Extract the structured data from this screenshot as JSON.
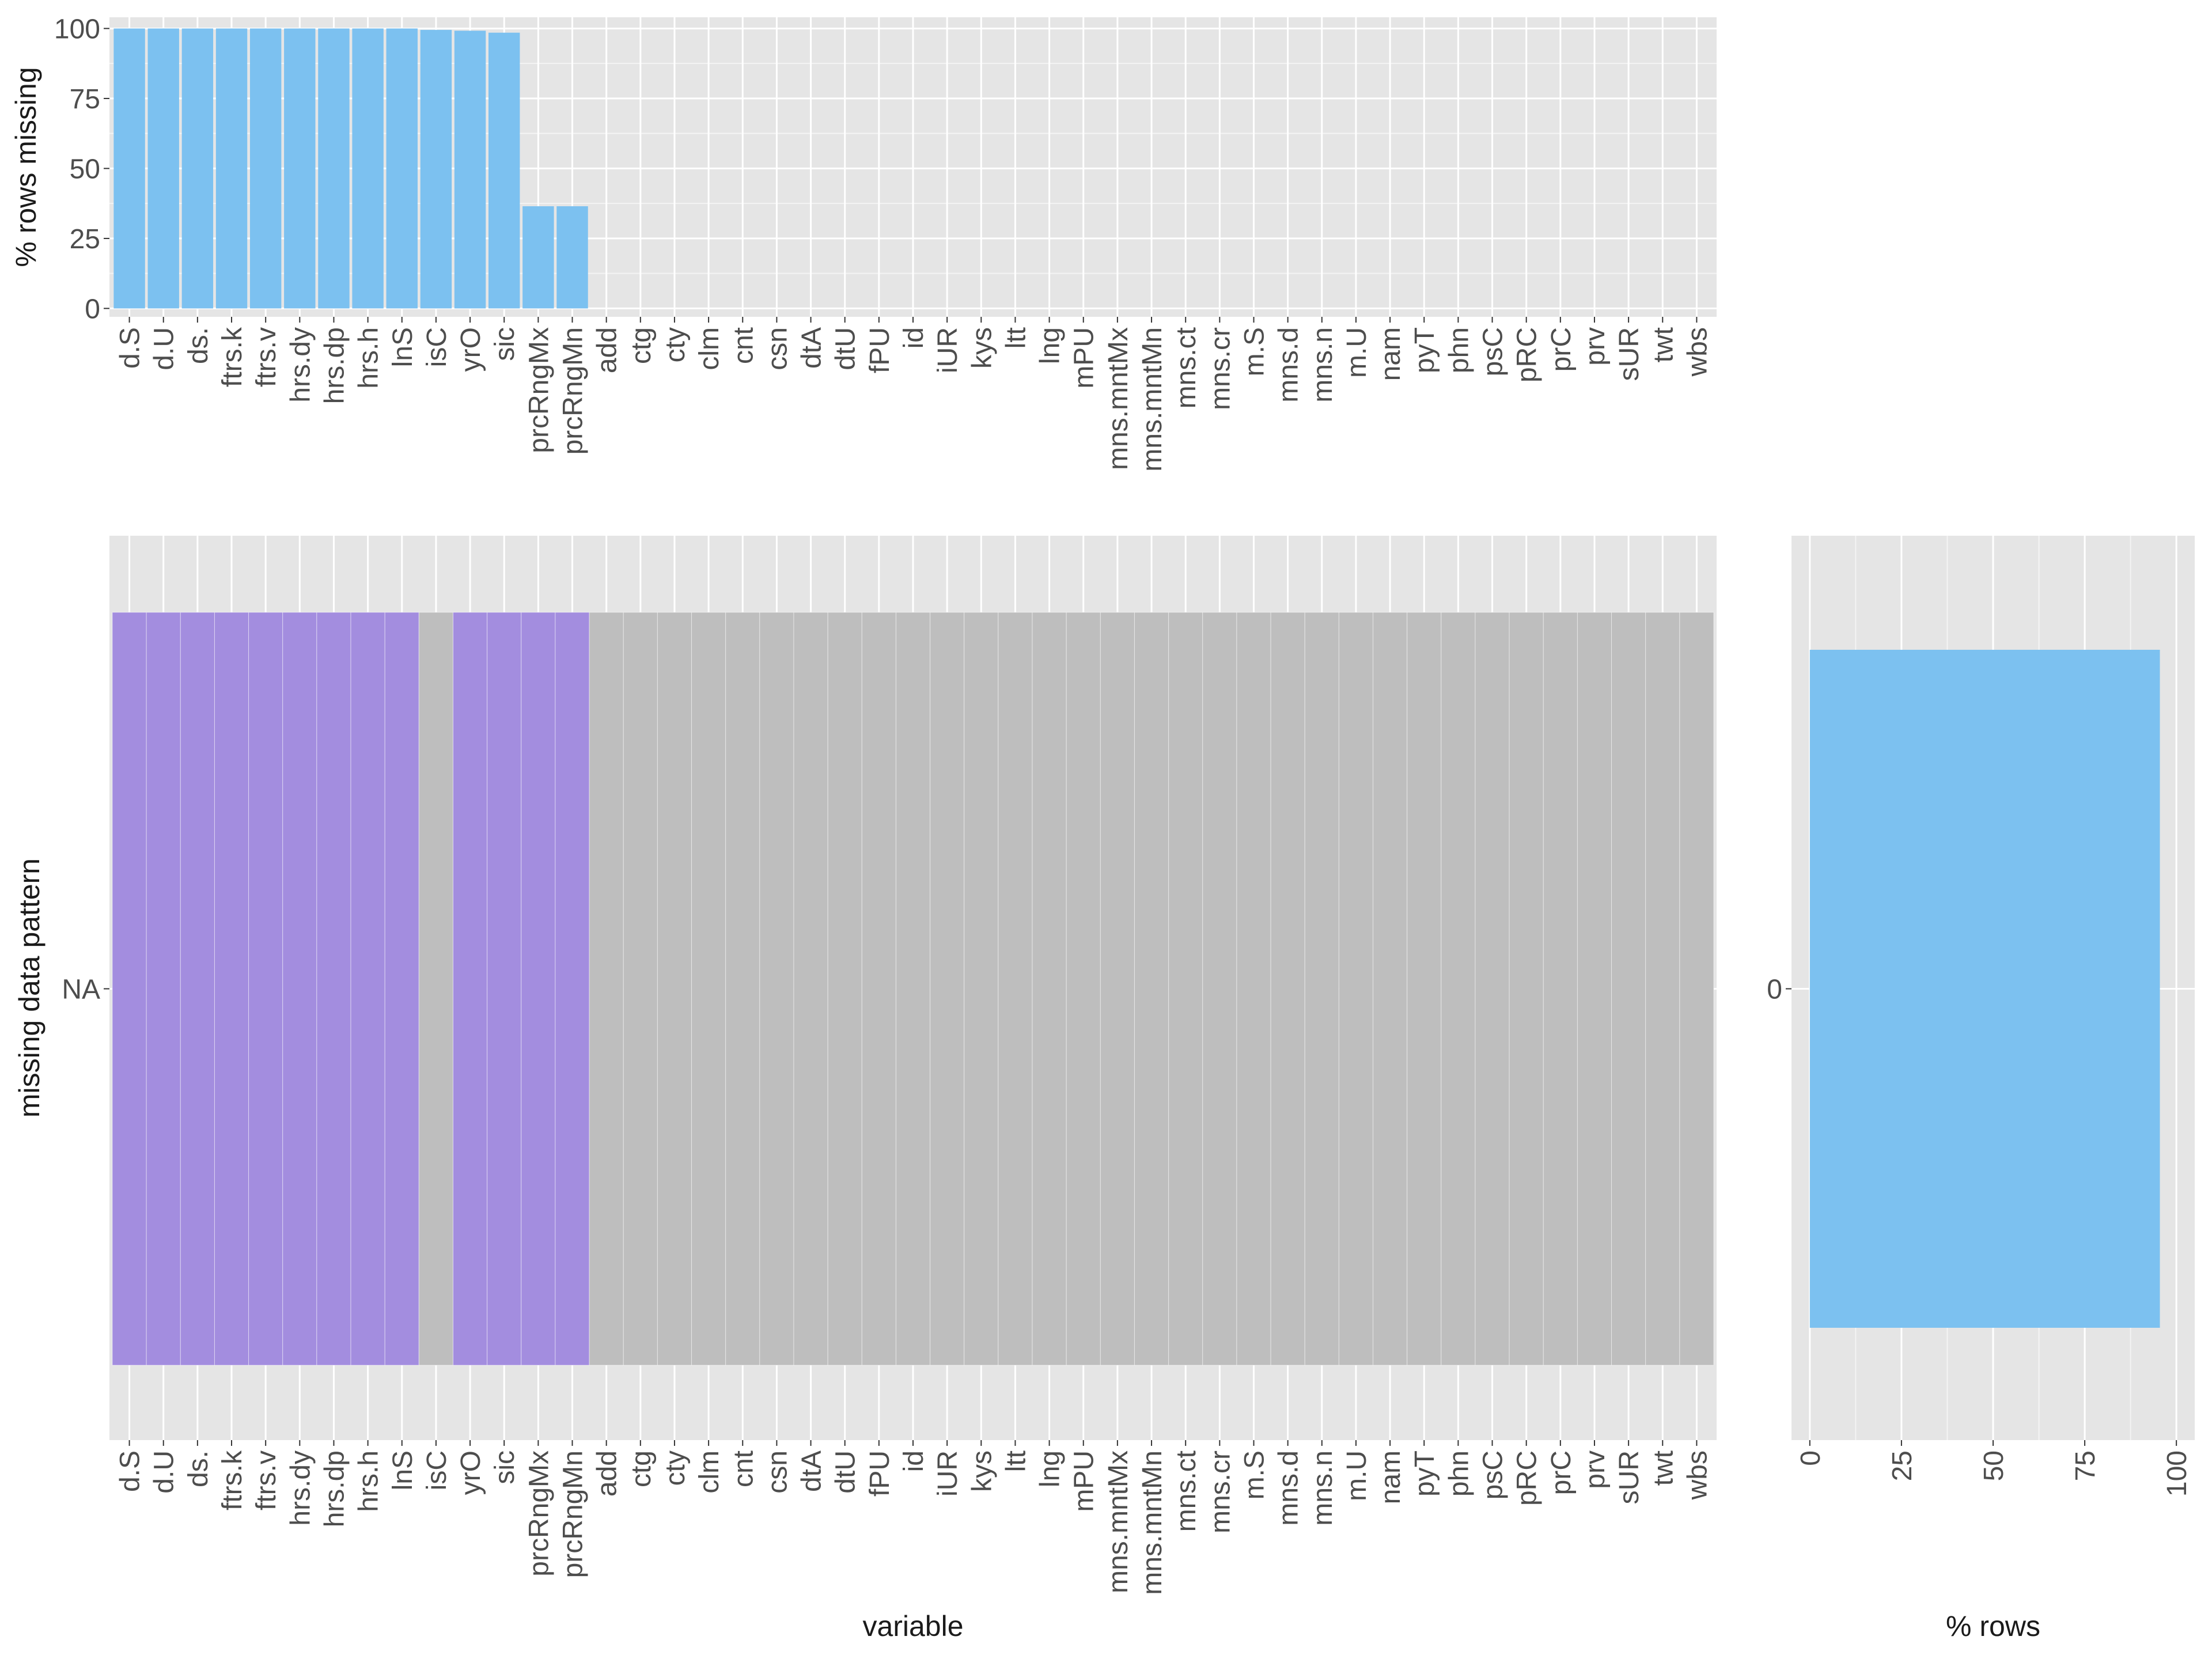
{
  "colors": {
    "panel_bg": "#e5e5e5",
    "grid_major": "#ffffff",
    "bar_blue": "#7cc1f0",
    "missing_purple": "#a38ddf",
    "present_gray": "#bebebe",
    "text": "#4d4d4d",
    "title_text": "#1a1a1a"
  },
  "chart_data": [
    {
      "name": "percent-missing-by-variable",
      "type": "bar",
      "categories": [
        "d.S",
        "d.U",
        "ds.",
        "ftrs.k",
        "ftrs.v",
        "hrs.dy",
        "hrs.dp",
        "hrs.h",
        "lnS",
        "isC",
        "yrO",
        "sic",
        "prcRngMx",
        "prcRngMn",
        "add",
        "ctg",
        "cty",
        "clm",
        "cnt",
        "csn",
        "dtA",
        "dtU",
        "fPU",
        "id",
        "iUR",
        "kys",
        "ltt",
        "lng",
        "mPU",
        "mns.mntMx",
        "mns.mntMn",
        "mns.ct",
        "mns.cr",
        "m.S",
        "mns.d",
        "mns.n",
        "m.U",
        "nam",
        "pyT",
        "phn",
        "psC",
        "pRC",
        "prC",
        "prv",
        "sUR",
        "twt",
        "wbs"
      ],
      "values": [
        100,
        100,
        100,
        100,
        100,
        100,
        100,
        100,
        100,
        99.5,
        99.2,
        98.5,
        36.5,
        36.5,
        0,
        0,
        0,
        0,
        0,
        0,
        0,
        0,
        0,
        0,
        0,
        0,
        0,
        0,
        0,
        0,
        0,
        0,
        0,
        0,
        0,
        0,
        0,
        0,
        0,
        0,
        0,
        0,
        0,
        0,
        0,
        0,
        0
      ],
      "ylabel": "% rows missing",
      "xlabel": "",
      "ylim": [
        -3,
        104
      ],
      "yticks": [
        0,
        25,
        50,
        75,
        100
      ],
      "grid": true
    },
    {
      "name": "missing-data-pattern",
      "type": "heatmap",
      "categories": [
        "d.S",
        "d.U",
        "ds.",
        "ftrs.k",
        "ftrs.v",
        "hrs.dy",
        "hrs.dp",
        "hrs.h",
        "lnS",
        "isC",
        "yrO",
        "sic",
        "prcRngMx",
        "prcRngMn",
        "add",
        "ctg",
        "cty",
        "clm",
        "cnt",
        "csn",
        "dtA",
        "dtU",
        "fPU",
        "id",
        "iUR",
        "kys",
        "ltt",
        "lng",
        "mPU",
        "mns.mntMx",
        "mns.mntMn",
        "mns.ct",
        "mns.cr",
        "m.S",
        "mns.d",
        "mns.n",
        "m.U",
        "nam",
        "pyT",
        "phn",
        "psC",
        "pRC",
        "prC",
        "prv",
        "sUR",
        "twt",
        "wbs"
      ],
      "rows": [
        "NA"
      ],
      "missing": [
        [
          1,
          1,
          1,
          1,
          1,
          1,
          1,
          1,
          1,
          0,
          1,
          1,
          1,
          1,
          0,
          0,
          0,
          0,
          0,
          0,
          0,
          0,
          0,
          0,
          0,
          0,
          0,
          0,
          0,
          0,
          0,
          0,
          0,
          0,
          0,
          0,
          0,
          0,
          0,
          0,
          0,
          0,
          0,
          0,
          0,
          0,
          0
        ]
      ],
      "xlabel": "variable",
      "ylabel": "missing data pattern",
      "grid": true
    },
    {
      "name": "percent-rows-by-pattern",
      "type": "bar",
      "orientation": "horizontal",
      "categories": [
        "0"
      ],
      "values": [
        95.5
      ],
      "xlabel": "% rows",
      "xlim": [
        -5,
        105
      ],
      "xticks": [
        0,
        25,
        50,
        75,
        100
      ],
      "grid": true
    }
  ]
}
